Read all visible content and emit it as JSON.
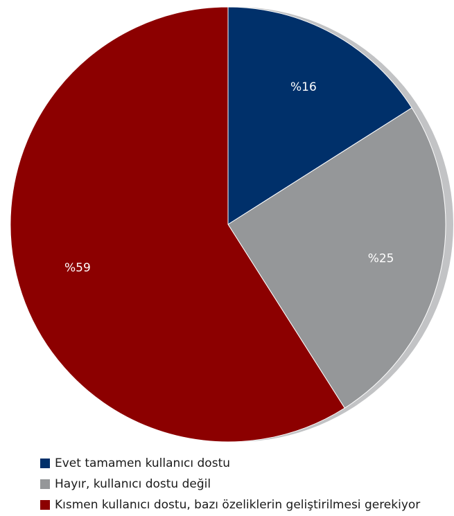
{
  "chart_data": {
    "type": "pie",
    "start_angle_deg": 0,
    "direction": "clockwise",
    "title": "",
    "slices": [
      {
        "label": "Evet tamamen kullanıcı dostu",
        "value": 16,
        "value_label": "%16",
        "color": "#00306a"
      },
      {
        "label": "Hayır, kullanıcı dostu değil",
        "value": 25,
        "value_label": "%25",
        "color": "#959799"
      },
      {
        "label": "Kısmen kullanıcı dostu, bazı özeliklerin geliştirilmesi gerekiyor",
        "value": 59,
        "value_label": "%59",
        "color": "#8c0000"
      }
    ],
    "legend_position": "bottom-left",
    "shadow_color": "#c2c3c5"
  }
}
